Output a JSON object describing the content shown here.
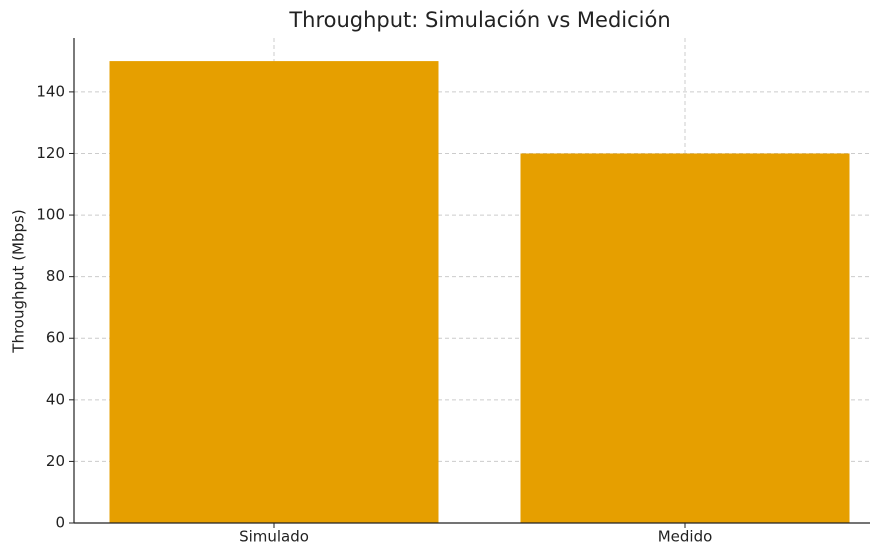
{
  "chart_data": {
    "type": "bar",
    "title": "Throughput: Simulación vs Medición",
    "y_label": "Throughput (Mbps)",
    "categories": [
      "Simulado",
      "Medido"
    ],
    "values": [
      150,
      120
    ],
    "color": "#e69f00",
    "ylim": [
      0,
      157.5
    ],
    "yticks": [
      0,
      20,
      40,
      60,
      80,
      100,
      120,
      140
    ],
    "grid": true
  }
}
